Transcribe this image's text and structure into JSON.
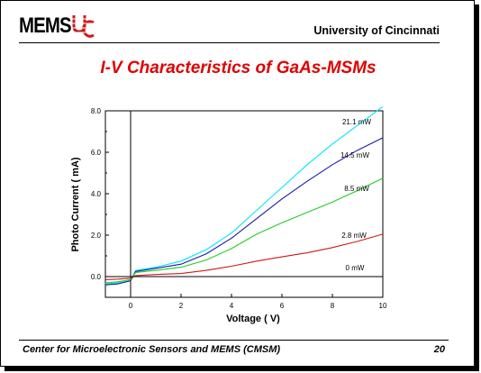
{
  "header": {
    "logo_text": "MEMS",
    "university": "University of Cincinnati"
  },
  "slide_title": "I-V Characteristics of GaAs-MSMs",
  "footer": {
    "center_name": "Center for Microelectronic Sensors and MEMS (CMSM)",
    "page_number": "20"
  },
  "colors": {
    "title": "#e00000",
    "series_21_1": "#00e5ff",
    "series_14_5": "#1a1aa8",
    "series_8_5": "#22cc22",
    "series_2_8": "#d01818",
    "series_0": "#000000"
  },
  "chart_data": {
    "type": "line",
    "xlabel": "Voltage ( V)",
    "ylabel": "Photo Current ( mA)",
    "xlim": [
      -1,
      10
    ],
    "ylim": [
      -1,
      8
    ],
    "x_ticks": [
      "0",
      "2",
      "4",
      "6",
      "8",
      "10"
    ],
    "y_ticks": [
      "0.0",
      "2.0",
      "4.0",
      "6.0",
      "8.0"
    ],
    "series": [
      {
        "name": "21.1 mW",
        "x": [
          -1,
          -0.5,
          0,
          0.2,
          1,
          2,
          3,
          4,
          5,
          6,
          7,
          8,
          9,
          10
        ],
        "y": [
          -0.35,
          -0.3,
          -0.2,
          0.3,
          0.45,
          0.75,
          1.3,
          2.1,
          3.2,
          4.3,
          5.4,
          6.4,
          7.3,
          8.2
        ]
      },
      {
        "name": "14.5 mW",
        "x": [
          -1,
          -0.5,
          0,
          0.2,
          1,
          2,
          3,
          4,
          5,
          6,
          7,
          8,
          9,
          10
        ],
        "y": [
          -0.4,
          -0.35,
          -0.2,
          0.25,
          0.4,
          0.6,
          1.1,
          1.85,
          2.8,
          3.75,
          4.6,
          5.4,
          6.1,
          6.7
        ]
      },
      {
        "name": "8.5 mW",
        "x": [
          -1,
          -0.5,
          0,
          0.2,
          1,
          2,
          3,
          4,
          5,
          6,
          7,
          8,
          9,
          10
        ],
        "y": [
          -0.3,
          -0.25,
          -0.15,
          0.2,
          0.3,
          0.45,
          0.8,
          1.35,
          2.05,
          2.6,
          3.1,
          3.6,
          4.15,
          4.75
        ]
      },
      {
        "name": "2.8 mW",
        "x": [
          -1,
          -0.5,
          0,
          0.2,
          1,
          2,
          3,
          4,
          5,
          6,
          7,
          8,
          9,
          10
        ],
        "y": [
          -0.15,
          -0.12,
          -0.08,
          0.05,
          0.1,
          0.15,
          0.3,
          0.5,
          0.75,
          0.95,
          1.15,
          1.4,
          1.7,
          2.05
        ]
      },
      {
        "name": "0 mW",
        "x": [
          -1,
          0,
          10
        ],
        "y": [
          0,
          0,
          0
        ]
      }
    ]
  }
}
